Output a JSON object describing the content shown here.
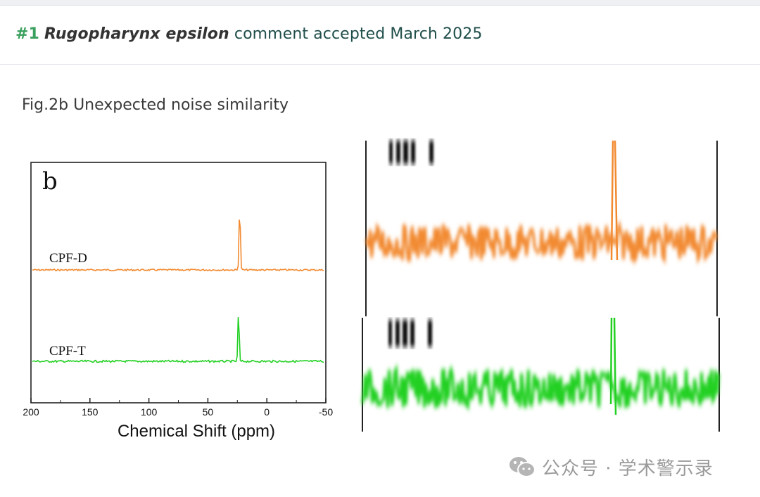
{
  "header": {
    "number": "#1",
    "species": "Rugopharynx epsilon",
    "status_text": "comment accepted March 2025"
  },
  "caption": "Fig.2b Unexpected noise similarity",
  "left_panel": {
    "panel_letter": "b",
    "label_top": "CPF-D",
    "label_bottom": "CPF-T",
    "x_ticks": [
      "200",
      "150",
      "100",
      "50",
      "0",
      "-50"
    ],
    "x_axis_label": "Chemical Shift (ppm)"
  },
  "colors": {
    "orange": "#f28a30",
    "green": "#22d022",
    "header_text": "#1f4e4a",
    "hash": "#3aa05e"
  },
  "chart_data": {
    "type": "line",
    "xlabel": "Chemical Shift (ppm)",
    "xlim": [
      200,
      -50
    ],
    "series": [
      {
        "name": "CPF-D",
        "peak_ppm": 23
      },
      {
        "name": "CPF-T",
        "peak_ppm": 24
      }
    ]
  },
  "watermark": {
    "icon": "wechat-icon",
    "text": "公众号 · 学术警示录"
  }
}
